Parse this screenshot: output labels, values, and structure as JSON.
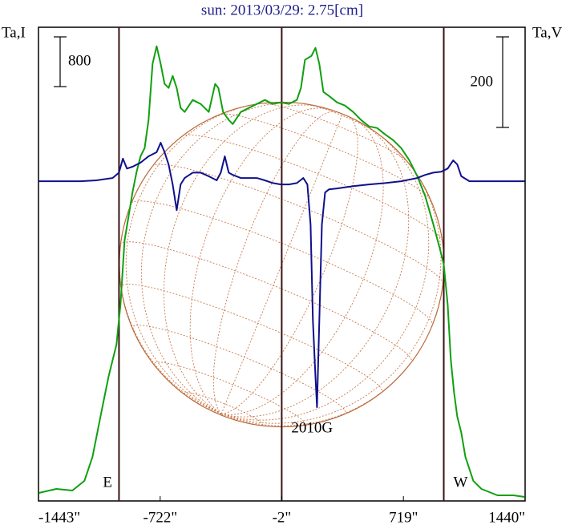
{
  "chart_data": {
    "type": "line",
    "title": "sun: 2013/03/29: 2.75[cm]",
    "ylabel": "Ta,I",
    "y2label": "Ta,V",
    "xlim": [
      -1443,
      1440
    ],
    "xticks": [
      {
        "value": -1443,
        "label": "-1443\""
      },
      {
        "value": -722,
        "label": "-722\""
      },
      {
        "value": -2,
        "label": "-2\""
      },
      {
        "value": 719,
        "label": "719\""
      },
      {
        "value": 1440,
        "label": "1440\""
      }
    ],
    "ylim": [
      0,
      7620
    ],
    "y2lim": [
      -706,
      340
    ],
    "scale_bars": [
      {
        "value": 800,
        "axis": "y"
      },
      {
        "value": 200,
        "axis": "y2"
      }
    ],
    "vlines": [
      -966,
      -2,
      958
    ],
    "limb_labels": [
      "E",
      "W"
    ],
    "annotation": "2010G",
    "series": [
      {
        "name": "I",
        "color": "#10a010",
        "axis": "y",
        "x": [
          -1441,
          -1337,
          -1242,
          -1171,
          -1123,
          -1076,
          -1028,
          -981,
          -957,
          -933,
          -909,
          -886,
          -862,
          -838,
          -814,
          -791,
          -767,
          -743,
          -719,
          -696,
          -672,
          -648,
          -624,
          -601,
          -577,
          -529,
          -482,
          -434,
          -396,
          -377,
          -349,
          -316,
          -292,
          -244,
          -197,
          -149,
          -102,
          -54,
          -7,
          41,
          88,
          112,
          136,
          174,
          198,
          221,
          245,
          278,
          326,
          373,
          421,
          468,
          516,
          563,
          611,
          658,
          706,
          753,
          801,
          848,
          896,
          934,
          958,
          981,
          1000,
          1019,
          1038,
          1062,
          1086,
          1133,
          1181,
          1276,
          1371,
          1438
        ],
        "values": [
          129,
          194,
          168,
          323,
          710,
          1355,
          2000,
          2516,
          3161,
          4193,
          4580,
          4967,
          5289,
          5547,
          5676,
          6128,
          7031,
          7314,
          7031,
          6708,
          6644,
          6837,
          6644,
          6321,
          6257,
          6450,
          6386,
          6257,
          6708,
          6644,
          6257,
          6128,
          6063,
          6257,
          6321,
          6386,
          6450,
          6386,
          6411,
          6386,
          6450,
          6644,
          7095,
          7160,
          7289,
          7031,
          6579,
          6515,
          6411,
          6360,
          6257,
          6128,
          6024,
          5999,
          5895,
          5805,
          5676,
          5483,
          5225,
          4902,
          4451,
          4064,
          3806,
          3161,
          2258,
          1742,
          1355,
          1097,
          710,
          323,
          194,
          90,
          90,
          65
        ]
      },
      {
        "name": "V",
        "color": "#10108c",
        "axis": "y2",
        "x": [
          -1441,
          -1289,
          -1194,
          -1099,
          -1004,
          -966,
          -943,
          -919,
          -886,
          -838,
          -791,
          -743,
          -719,
          -696,
          -672,
          -648,
          -624,
          -601,
          -577,
          -529,
          -482,
          -434,
          -387,
          -363,
          -339,
          -316,
          -292,
          -244,
          -197,
          -149,
          -102,
          -54,
          -7,
          41,
          88,
          126,
          150,
          169,
          183,
          198,
          207,
          221,
          236,
          255,
          278,
          326,
          421,
          516,
          611,
          706,
          801,
          848,
          896,
          943,
          981,
          1014,
          1038,
          1062,
          1110,
          1181,
          1324,
          1438
        ],
        "values": [
          0,
          0,
          0,
          2,
          7,
          19,
          50,
          28,
          32,
          41,
          55,
          64,
          85,
          64,
          37,
          -7,
          -64,
          -7,
          7,
          19,
          19,
          11,
          2,
          19,
          55,
          19,
          14,
          7,
          7,
          7,
          2,
          -4,
          -7,
          -7,
          -4,
          7,
          -7,
          -96,
          -308,
          -432,
          -499,
          -308,
          -96,
          -25,
          -18,
          -16,
          -11,
          -7,
          -4,
          0,
          7,
          14,
          19,
          21,
          28,
          46,
          37,
          11,
          0,
          0,
          0,
          0
        ]
      }
    ]
  }
}
